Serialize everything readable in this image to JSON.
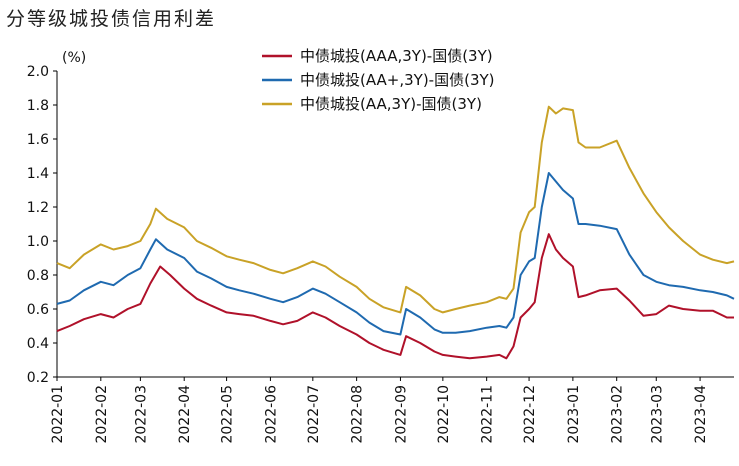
{
  "chart_data": {
    "type": "line",
    "title": "分等级城投债信用利差",
    "ylabel": "(%)",
    "ylim": [
      0.2,
      2.0
    ],
    "yticks": [
      "2.0",
      "1.8",
      "1.6",
      "1.4",
      "1.2",
      "1.0",
      "0.8",
      "0.6",
      "0.4",
      "0.2"
    ],
    "xticks": [
      "2022-01",
      "2022-02",
      "2022-03",
      "2022-04",
      "2022-05",
      "2022-06",
      "2022-07",
      "2022-08",
      "2022-09",
      "2022-10",
      "2022-11",
      "2022-12",
      "2023-01",
      "2023-02",
      "2023-03",
      "2023-04"
    ],
    "legend_position": "top",
    "grid": false,
    "series": [
      {
        "name": "中债城投(AAA,3Y)-国债(3Y)",
        "color": "#B0112A",
        "points": [
          [
            "2022-01-01",
            0.47
          ],
          [
            "2022-01-10",
            0.5
          ],
          [
            "2022-01-20",
            0.54
          ],
          [
            "2022-02-01",
            0.57
          ],
          [
            "2022-02-10",
            0.55
          ],
          [
            "2022-02-20",
            0.6
          ],
          [
            "2022-03-01",
            0.63
          ],
          [
            "2022-03-08",
            0.75
          ],
          [
            "2022-03-15",
            0.85
          ],
          [
            "2022-03-22",
            0.8
          ],
          [
            "2022-04-01",
            0.72
          ],
          [
            "2022-04-10",
            0.66
          ],
          [
            "2022-04-20",
            0.62
          ],
          [
            "2022-05-01",
            0.58
          ],
          [
            "2022-05-10",
            0.57
          ],
          [
            "2022-05-20",
            0.56
          ],
          [
            "2022-06-01",
            0.53
          ],
          [
            "2022-06-10",
            0.51
          ],
          [
            "2022-06-20",
            0.53
          ],
          [
            "2022-07-01",
            0.58
          ],
          [
            "2022-07-10",
            0.55
          ],
          [
            "2022-07-20",
            0.5
          ],
          [
            "2022-08-01",
            0.45
          ],
          [
            "2022-08-10",
            0.4
          ],
          [
            "2022-08-20",
            0.36
          ],
          [
            "2022-09-01",
            0.33
          ],
          [
            "2022-09-05",
            0.44
          ],
          [
            "2022-09-15",
            0.4
          ],
          [
            "2022-09-25",
            0.35
          ],
          [
            "2022-10-01",
            0.33
          ],
          [
            "2022-10-10",
            0.32
          ],
          [
            "2022-10-20",
            0.31
          ],
          [
            "2022-11-01",
            0.32
          ],
          [
            "2022-11-10",
            0.33
          ],
          [
            "2022-11-15",
            0.31
          ],
          [
            "2022-11-20",
            0.38
          ],
          [
            "2022-11-25",
            0.55
          ],
          [
            "2022-12-01",
            0.6
          ],
          [
            "2022-12-05",
            0.64
          ],
          [
            "2022-12-10",
            0.9
          ],
          [
            "2022-12-15",
            1.04
          ],
          [
            "2022-12-20",
            0.95
          ],
          [
            "2022-12-25",
            0.9
          ],
          [
            "2023-01-01",
            0.85
          ],
          [
            "2023-01-05",
            0.67
          ],
          [
            "2023-01-10",
            0.68
          ],
          [
            "2023-01-20",
            0.71
          ],
          [
            "2023-02-01",
            0.72
          ],
          [
            "2023-02-10",
            0.65
          ],
          [
            "2023-02-20",
            0.56
          ],
          [
            "2023-03-01",
            0.57
          ],
          [
            "2023-03-10",
            0.62
          ],
          [
            "2023-03-20",
            0.6
          ],
          [
            "2023-04-01",
            0.59
          ],
          [
            "2023-04-10",
            0.59
          ],
          [
            "2023-04-20",
            0.55
          ],
          [
            "2023-04-25",
            0.55
          ]
        ]
      },
      {
        "name": "中债城投(AA+,3Y)-国债(3Y)",
        "color": "#1F6AB0",
        "points": [
          [
            "2022-01-01",
            0.63
          ],
          [
            "2022-01-10",
            0.65
          ],
          [
            "2022-01-20",
            0.71
          ],
          [
            "2022-02-01",
            0.76
          ],
          [
            "2022-02-10",
            0.74
          ],
          [
            "2022-02-20",
            0.8
          ],
          [
            "2022-03-01",
            0.84
          ],
          [
            "2022-03-08",
            0.95
          ],
          [
            "2022-03-12",
            1.01
          ],
          [
            "2022-03-20",
            0.95
          ],
          [
            "2022-04-01",
            0.9
          ],
          [
            "2022-04-10",
            0.82
          ],
          [
            "2022-04-20",
            0.78
          ],
          [
            "2022-05-01",
            0.73
          ],
          [
            "2022-05-10",
            0.71
          ],
          [
            "2022-05-20",
            0.69
          ],
          [
            "2022-06-01",
            0.66
          ],
          [
            "2022-06-10",
            0.64
          ],
          [
            "2022-06-20",
            0.67
          ],
          [
            "2022-07-01",
            0.72
          ],
          [
            "2022-07-10",
            0.69
          ],
          [
            "2022-07-20",
            0.64
          ],
          [
            "2022-08-01",
            0.58
          ],
          [
            "2022-08-10",
            0.52
          ],
          [
            "2022-08-20",
            0.47
          ],
          [
            "2022-09-01",
            0.45
          ],
          [
            "2022-09-05",
            0.6
          ],
          [
            "2022-09-15",
            0.55
          ],
          [
            "2022-09-25",
            0.48
          ],
          [
            "2022-10-01",
            0.46
          ],
          [
            "2022-10-10",
            0.46
          ],
          [
            "2022-10-20",
            0.47
          ],
          [
            "2022-11-01",
            0.49
          ],
          [
            "2022-11-10",
            0.5
          ],
          [
            "2022-11-15",
            0.49
          ],
          [
            "2022-11-20",
            0.55
          ],
          [
            "2022-11-25",
            0.8
          ],
          [
            "2022-12-01",
            0.88
          ],
          [
            "2022-12-05",
            0.9
          ],
          [
            "2022-12-10",
            1.2
          ],
          [
            "2022-12-15",
            1.4
          ],
          [
            "2022-12-20",
            1.35
          ],
          [
            "2022-12-25",
            1.3
          ],
          [
            "2023-01-01",
            1.25
          ],
          [
            "2023-01-05",
            1.1
          ],
          [
            "2023-01-10",
            1.1
          ],
          [
            "2023-01-20",
            1.09
          ],
          [
            "2023-02-01",
            1.07
          ],
          [
            "2023-02-10",
            0.92
          ],
          [
            "2023-02-20",
            0.8
          ],
          [
            "2023-03-01",
            0.76
          ],
          [
            "2023-03-10",
            0.74
          ],
          [
            "2023-03-20",
            0.73
          ],
          [
            "2023-04-01",
            0.71
          ],
          [
            "2023-04-10",
            0.7
          ],
          [
            "2023-04-20",
            0.68
          ],
          [
            "2023-04-25",
            0.66
          ]
        ]
      },
      {
        "name": "中债城投(AA,3Y)-国债(3Y)",
        "color": "#C9A227",
        "points": [
          [
            "2022-01-01",
            0.87
          ],
          [
            "2022-01-10",
            0.84
          ],
          [
            "2022-01-20",
            0.92
          ],
          [
            "2022-02-01",
            0.98
          ],
          [
            "2022-02-10",
            0.95
          ],
          [
            "2022-02-20",
            0.97
          ],
          [
            "2022-03-01",
            1.0
          ],
          [
            "2022-03-08",
            1.1
          ],
          [
            "2022-03-12",
            1.19
          ],
          [
            "2022-03-20",
            1.13
          ],
          [
            "2022-04-01",
            1.08
          ],
          [
            "2022-04-10",
            1.0
          ],
          [
            "2022-04-20",
            0.96
          ],
          [
            "2022-05-01",
            0.91
          ],
          [
            "2022-05-10",
            0.89
          ],
          [
            "2022-05-20",
            0.87
          ],
          [
            "2022-06-01",
            0.83
          ],
          [
            "2022-06-10",
            0.81
          ],
          [
            "2022-06-20",
            0.84
          ],
          [
            "2022-07-01",
            0.88
          ],
          [
            "2022-07-10",
            0.85
          ],
          [
            "2022-07-20",
            0.79
          ],
          [
            "2022-08-01",
            0.73
          ],
          [
            "2022-08-10",
            0.66
          ],
          [
            "2022-08-20",
            0.61
          ],
          [
            "2022-09-01",
            0.58
          ],
          [
            "2022-09-05",
            0.73
          ],
          [
            "2022-09-15",
            0.68
          ],
          [
            "2022-09-25",
            0.6
          ],
          [
            "2022-10-01",
            0.58
          ],
          [
            "2022-10-10",
            0.6
          ],
          [
            "2022-10-20",
            0.62
          ],
          [
            "2022-11-01",
            0.64
          ],
          [
            "2022-11-10",
            0.67
          ],
          [
            "2022-11-15",
            0.66
          ],
          [
            "2022-11-20",
            0.72
          ],
          [
            "2022-11-25",
            1.05
          ],
          [
            "2022-12-01",
            1.17
          ],
          [
            "2022-12-05",
            1.2
          ],
          [
            "2022-12-10",
            1.58
          ],
          [
            "2022-12-15",
            1.79
          ],
          [
            "2022-12-20",
            1.75
          ],
          [
            "2022-12-25",
            1.78
          ],
          [
            "2023-01-01",
            1.77
          ],
          [
            "2023-01-05",
            1.58
          ],
          [
            "2023-01-10",
            1.55
          ],
          [
            "2023-01-20",
            1.55
          ],
          [
            "2023-02-01",
            1.59
          ],
          [
            "2023-02-10",
            1.43
          ],
          [
            "2023-02-20",
            1.28
          ],
          [
            "2023-03-01",
            1.17
          ],
          [
            "2023-03-10",
            1.08
          ],
          [
            "2023-03-20",
            1.0
          ],
          [
            "2023-04-01",
            0.92
          ],
          [
            "2023-04-10",
            0.89
          ],
          [
            "2023-04-20",
            0.87
          ],
          [
            "2023-04-25",
            0.88
          ]
        ]
      }
    ]
  }
}
